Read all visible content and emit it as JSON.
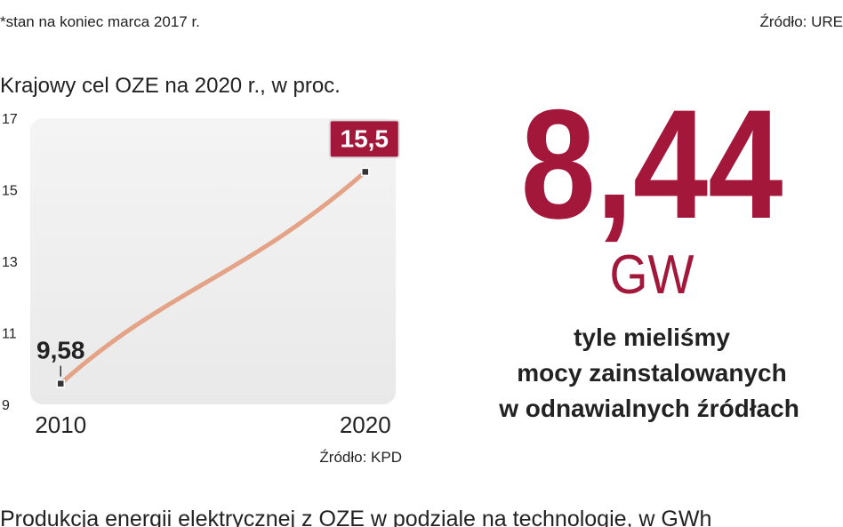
{
  "note": "*stan na koniec marca 2017 r.",
  "source_top": "Źródło: URE",
  "chart_data": {
    "type": "line",
    "title": "Krajowy cel OZE na 2020 r., w proc.",
    "x": [
      2010,
      2020
    ],
    "values": [
      9.58,
      15.5
    ],
    "value_labels": [
      "9,58",
      "15,5"
    ],
    "color": "#e4a386",
    "xlim": [
      2009,
      2021
    ],
    "xticks": [
      2010,
      2020
    ],
    "ylim": [
      9,
      17
    ],
    "yticks": [
      9,
      11,
      13,
      15,
      17
    ],
    "source": "Źródło: KPD"
  },
  "stat": {
    "value": "8,44",
    "unit": "GW",
    "lines": [
      "tyle mieliśmy",
      "mocy zainstalowanych",
      "w odnawialnych źródłach"
    ]
  },
  "footer": "Produkcja energii elektrycznej z OZE w podziale na technologie, w GWh"
}
